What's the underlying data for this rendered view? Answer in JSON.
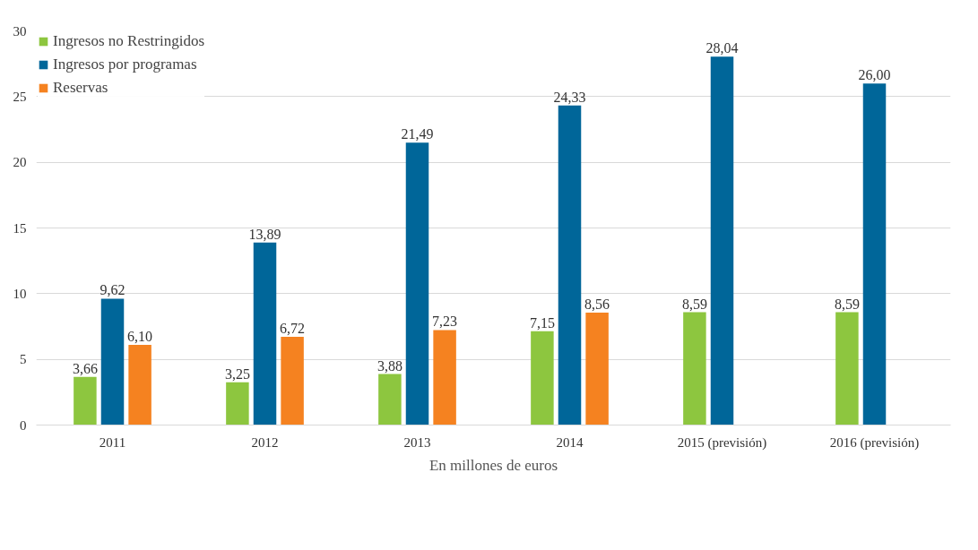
{
  "chart_data": {
    "type": "bar",
    "categories": [
      "2011",
      "2012",
      "2013",
      "2014",
      "2015 (previsión)",
      "2016 (previsión)"
    ],
    "series": [
      {
        "name": "Ingresos no Restringidos",
        "color": "#8dc63f",
        "values": [
          3.66,
          3.25,
          3.88,
          7.15,
          8.59,
          8.59
        ],
        "value_labels": [
          "3,66",
          "3,25",
          "3,88",
          "7,15",
          "8,59",
          "8,59"
        ]
      },
      {
        "name": "Ingresos por programas",
        "color": "#006699",
        "values": [
          9.62,
          13.89,
          21.49,
          24.33,
          28.04,
          26.0
        ],
        "value_labels": [
          "9,62",
          "13,89",
          "21,49",
          "24,33",
          "28,04",
          "26,00"
        ]
      },
      {
        "name": "Reservas",
        "color": "#f58220",
        "values": [
          6.1,
          6.72,
          7.23,
          8.56,
          null,
          null
        ],
        "value_labels": [
          "6,10",
          "6,72",
          "7,23",
          "8,56",
          null,
          null
        ]
      }
    ],
    "ylim": [
      0,
      30
    ],
    "yticks": [
      0,
      5,
      10,
      15,
      20,
      25,
      30
    ],
    "grid": "y",
    "legend": "top left",
    "annotations": [
      "En millones de euros"
    ]
  }
}
